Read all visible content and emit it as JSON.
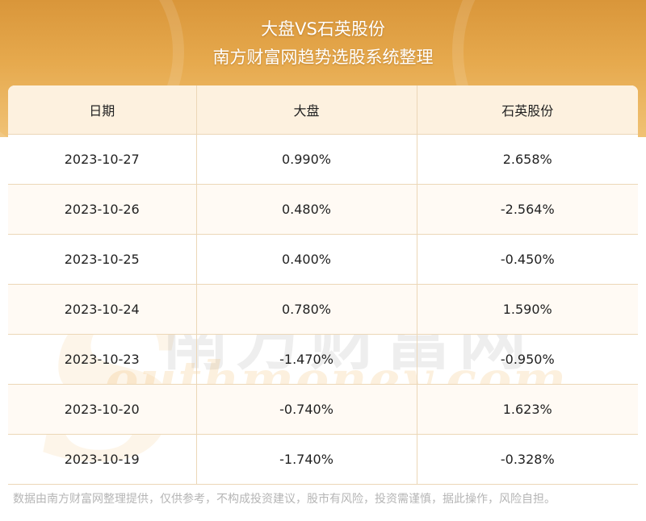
{
  "header": {
    "title": "大盘VS石英股份",
    "subtitle": "南方财富网趋势选股系统整理"
  },
  "table": {
    "columns": [
      "日期",
      "大盘",
      "石英股份"
    ],
    "rows": [
      [
        "2023-10-27",
        "0.990%",
        "2.658%"
      ],
      [
        "2023-10-26",
        "0.480%",
        "-2.564%"
      ],
      [
        "2023-10-25",
        "0.400%",
        "-0.450%"
      ],
      [
        "2023-10-24",
        "0.780%",
        "1.590%"
      ],
      [
        "2023-10-23",
        "-1.470%",
        "-0.950%"
      ],
      [
        "2023-10-20",
        "-0.740%",
        "1.623%"
      ],
      [
        "2023-10-19",
        "-1.740%",
        "-0.328%"
      ]
    ]
  },
  "watermark": {
    "cn": "南方财富网",
    "en": "outhmoney.com",
    "s": "S"
  },
  "footer": {
    "disclaimer": "数据由南方财富网整理提供，仅供参考，不构成投资建议，股市有风险，投资需谨慎，据此操作，风险自担。"
  },
  "colors": {
    "banner": "#e6a94d",
    "header_row": "#fdf1df",
    "grid": "#ecd7b7"
  }
}
